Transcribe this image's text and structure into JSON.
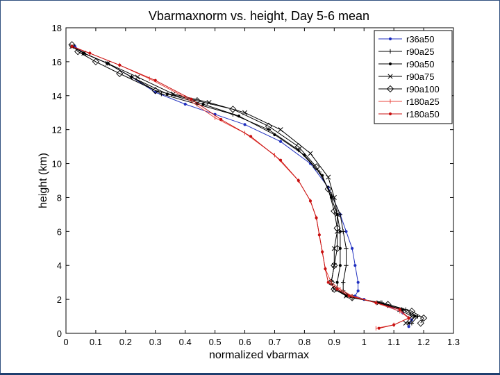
{
  "chart_data": {
    "type": "line",
    "title": "Vbarmaxnorm vs. height, Day 5-6 mean",
    "xlabel": "normalized vbarmax",
    "ylabel": "height (km)",
    "xlim": [
      0,
      1.3
    ],
    "ylim": [
      0,
      18
    ],
    "xticks": [
      0,
      0.1,
      0.2,
      0.3,
      0.4,
      0.5,
      0.6,
      0.7,
      0.8,
      0.9,
      1,
      1.1,
      1.2,
      1.3
    ],
    "xtick_labels": [
      "0",
      "0.1",
      "0.2",
      "0.3",
      "0.4",
      "0.5",
      "0.6",
      "0.7",
      "0.8",
      "0.9",
      "1",
      "1.1",
      "1.2",
      "1.3"
    ],
    "yticks": [
      0,
      2,
      4,
      6,
      8,
      10,
      12,
      14,
      16,
      18
    ],
    "ytick_labels": [
      "0",
      "2",
      "4",
      "6",
      "8",
      "10",
      "12",
      "14",
      "16",
      "18"
    ],
    "grid": false,
    "legend_position": "top-right",
    "series": [
      {
        "name": "r36a50",
        "color": "#1f2fbf",
        "marker": "dot",
        "points": [
          [
            0.03,
            16.9
          ],
          [
            0.06,
            16.5
          ],
          [
            0.14,
            15.9
          ],
          [
            0.22,
            15.1
          ],
          [
            0.3,
            14.2
          ],
          [
            0.4,
            13.5
          ],
          [
            0.5,
            12.9
          ],
          [
            0.6,
            12.3
          ],
          [
            0.72,
            11.3
          ],
          [
            0.82,
            10.0
          ],
          [
            0.88,
            8.6
          ],
          [
            0.92,
            7.0
          ],
          [
            0.94,
            6.0
          ],
          [
            0.96,
            5.0
          ],
          [
            0.97,
            4.0
          ],
          [
            0.98,
            3.0
          ],
          [
            0.98,
            2.5
          ],
          [
            0.97,
            2.2
          ],
          [
            1.0,
            2.0
          ],
          [
            1.08,
            1.6
          ],
          [
            1.13,
            1.2
          ],
          [
            1.16,
            0.8
          ],
          [
            1.15,
            0.4
          ]
        ]
      },
      {
        "name": "r90a25",
        "color": "#000000",
        "marker": "plus",
        "points": [
          [
            0.02,
            16.9
          ],
          [
            0.06,
            16.5
          ],
          [
            0.14,
            15.9
          ],
          [
            0.22,
            15.1
          ],
          [
            0.32,
            14.1
          ],
          [
            0.44,
            13.5
          ],
          [
            0.56,
            12.9
          ],
          [
            0.68,
            12.0
          ],
          [
            0.78,
            10.8
          ],
          [
            0.85,
            9.5
          ],
          [
            0.89,
            8.2
          ],
          [
            0.92,
            7.0
          ],
          [
            0.93,
            6.0
          ],
          [
            0.94,
            5.0
          ],
          [
            0.94,
            4.0
          ],
          [
            0.93,
            3.0
          ],
          [
            0.93,
            2.5
          ],
          [
            0.96,
            2.1
          ],
          [
            1.06,
            1.8
          ],
          [
            1.14,
            1.4
          ],
          [
            1.18,
            1.0
          ],
          [
            1.16,
            0.6
          ]
        ]
      },
      {
        "name": "r90a50",
        "color": "#000000",
        "marker": "dot",
        "points": [
          [
            0.02,
            16.9
          ],
          [
            0.06,
            16.5
          ],
          [
            0.14,
            15.9
          ],
          [
            0.22,
            15.1
          ],
          [
            0.34,
            14.1
          ],
          [
            0.46,
            13.5
          ],
          [
            0.58,
            12.8
          ],
          [
            0.7,
            11.7
          ],
          [
            0.8,
            10.5
          ],
          [
            0.86,
            9.3
          ],
          [
            0.89,
            8.0
          ],
          [
            0.91,
            7.0
          ],
          [
            0.92,
            6.0
          ],
          [
            0.92,
            5.0
          ],
          [
            0.92,
            4.0
          ],
          [
            0.91,
            3.0
          ],
          [
            0.91,
            2.6
          ],
          [
            0.94,
            2.2
          ],
          [
            1.05,
            1.8
          ],
          [
            1.13,
            1.4
          ],
          [
            1.17,
            1.0
          ],
          [
            1.15,
            0.6
          ]
        ]
      },
      {
        "name": "r90a75",
        "color": "#000000",
        "marker": "x",
        "points": [
          [
            0.02,
            16.9
          ],
          [
            0.06,
            16.5
          ],
          [
            0.14,
            15.9
          ],
          [
            0.24,
            15.1
          ],
          [
            0.36,
            14.1
          ],
          [
            0.48,
            13.6
          ],
          [
            0.6,
            13.0
          ],
          [
            0.72,
            12.0
          ],
          [
            0.82,
            10.6
          ],
          [
            0.88,
            9.2
          ],
          [
            0.9,
            8.0
          ],
          [
            0.91,
            7.0
          ],
          [
            0.91,
            6.0
          ],
          [
            0.9,
            5.0
          ],
          [
            0.9,
            4.0
          ],
          [
            0.89,
            3.0
          ],
          [
            0.9,
            2.6
          ],
          [
            0.94,
            2.2
          ],
          [
            1.05,
            1.8
          ],
          [
            1.12,
            1.4
          ],
          [
            1.16,
            1.0
          ],
          [
            1.14,
            0.6
          ]
        ]
      },
      {
        "name": "r90a100",
        "color": "#000000",
        "marker": "diamond",
        "points": [
          [
            0.02,
            17.0
          ],
          [
            0.04,
            16.6
          ],
          [
            0.1,
            16.0
          ],
          [
            0.18,
            15.3
          ],
          [
            0.3,
            14.3
          ],
          [
            0.44,
            13.7
          ],
          [
            0.56,
            13.2
          ],
          [
            0.68,
            12.2
          ],
          [
            0.78,
            11.0
          ],
          [
            0.84,
            9.8
          ],
          [
            0.88,
            8.5
          ],
          [
            0.9,
            7.2
          ],
          [
            0.91,
            6.2
          ],
          [
            0.91,
            5.0
          ],
          [
            0.9,
            4.0
          ],
          [
            0.89,
            3.0
          ],
          [
            0.9,
            2.6
          ],
          [
            0.96,
            2.1
          ],
          [
            1.08,
            1.7
          ],
          [
            1.16,
            1.3
          ],
          [
            1.2,
            0.9
          ],
          [
            1.19,
            0.6
          ]
        ]
      },
      {
        "name": "r180a25",
        "color": "#e8453c",
        "marker": "vline",
        "points": [
          [
            0.02,
            16.9
          ],
          [
            0.08,
            16.5
          ],
          [
            0.18,
            15.8
          ],
          [
            0.28,
            15.0
          ],
          [
            0.4,
            13.9
          ],
          [
            0.5,
            12.7
          ],
          [
            0.6,
            11.8
          ],
          [
            0.7,
            10.5
          ],
          [
            0.78,
            9.0
          ],
          [
            0.82,
            7.8
          ],
          [
            0.84,
            6.8
          ],
          [
            0.85,
            5.8
          ],
          [
            0.86,
            4.8
          ],
          [
            0.87,
            3.8
          ],
          [
            0.89,
            3.0
          ],
          [
            0.92,
            2.6
          ],
          [
            0.96,
            2.2
          ],
          [
            1.04,
            1.8
          ],
          [
            1.12,
            1.3
          ],
          [
            1.15,
            0.9
          ],
          [
            1.1,
            0.5
          ],
          [
            1.04,
            0.3
          ]
        ]
      },
      {
        "name": "r180a50",
        "color": "#c81010",
        "marker": "dot",
        "points": [
          [
            0.02,
            16.9
          ],
          [
            0.08,
            16.5
          ],
          [
            0.18,
            15.8
          ],
          [
            0.3,
            14.9
          ],
          [
            0.42,
            13.8
          ],
          [
            0.52,
            12.6
          ],
          [
            0.62,
            11.6
          ],
          [
            0.72,
            10.2
          ],
          [
            0.78,
            9.0
          ],
          [
            0.82,
            7.8
          ],
          [
            0.84,
            6.8
          ],
          [
            0.85,
            5.8
          ],
          [
            0.86,
            4.8
          ],
          [
            0.87,
            3.8
          ],
          [
            0.88,
            3.0
          ],
          [
            0.91,
            2.6
          ],
          [
            0.95,
            2.2
          ],
          [
            1.04,
            1.8
          ],
          [
            1.12,
            1.4
          ],
          [
            1.15,
            0.9
          ],
          [
            1.1,
            0.5
          ],
          [
            1.05,
            0.3
          ]
        ]
      }
    ]
  }
}
